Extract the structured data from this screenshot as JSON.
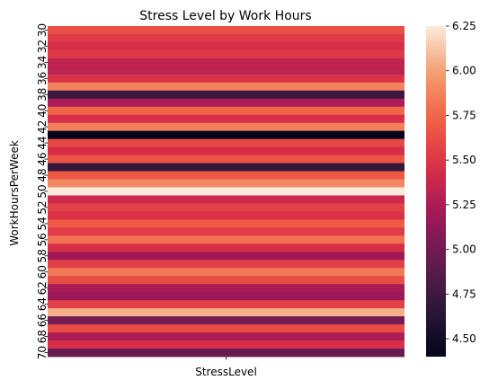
{
  "chart_data": {
    "type": "heatmap",
    "title": "Stress Level by Work Hours",
    "xlabel": "",
    "ylabel": "WorkHoursPerWeek",
    "x_categories": [
      "StressLevel"
    ],
    "y": [
      30,
      31,
      32,
      33,
      34,
      35,
      36,
      37,
      38,
      39,
      40,
      41,
      42,
      43,
      44,
      45,
      46,
      47,
      48,
      49,
      50,
      51,
      52,
      53,
      54,
      55,
      56,
      57,
      58,
      59,
      60,
      61,
      62,
      63,
      64,
      65,
      66,
      67,
      68,
      69,
      70
    ],
    "y_tick_labels": [
      "30",
      "32",
      "34",
      "36",
      "38",
      "40",
      "42",
      "44",
      "46",
      "48",
      "50",
      "52",
      "54",
      "56",
      "58",
      "60",
      "62",
      "64",
      "66",
      "68",
      "70"
    ],
    "values": [
      5.63,
      5.52,
      5.45,
      5.51,
      5.35,
      5.31,
      5.47,
      5.87,
      4.73,
      5.24,
      5.75,
      5.46,
      5.86,
      4.4,
      5.6,
      5.45,
      5.65,
      4.7,
      5.68,
      5.9,
      6.25,
      5.4,
      5.55,
      5.48,
      5.69,
      5.53,
      5.8,
      5.45,
      5.2,
      5.55,
      5.83,
      5.62,
      5.23,
      5.18,
      5.55,
      6.05,
      5.0,
      5.62,
      5.25,
      5.45,
      4.95
    ],
    "colorbar": {
      "min": 4.4,
      "max": 6.25,
      "ticks": [
        "4.50",
        "4.75",
        "5.00",
        "5.25",
        "5.50",
        "5.75",
        "6.00",
        "6.25"
      ],
      "colormap": "rocket"
    }
  }
}
